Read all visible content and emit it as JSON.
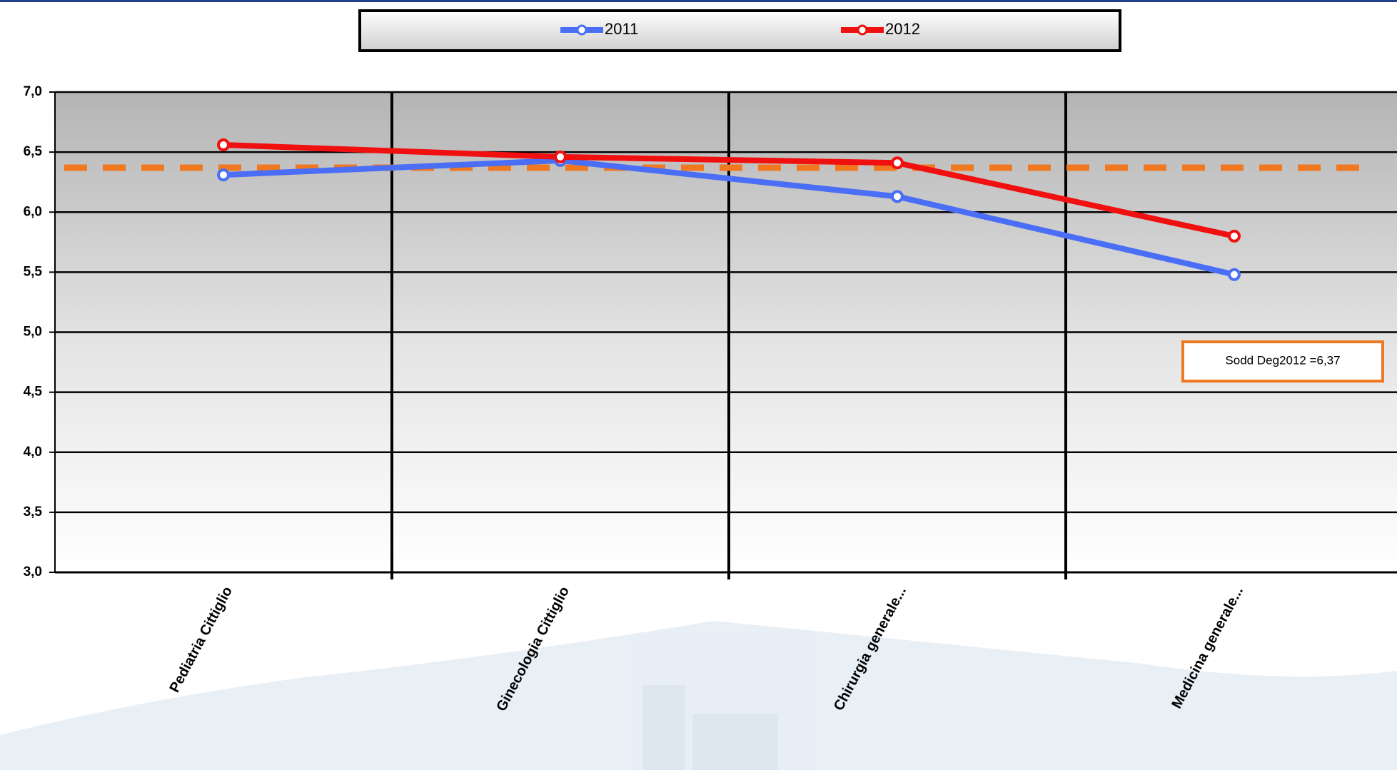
{
  "chart_data": {
    "type": "line",
    "categories": [
      "Pediatria Cittiglio",
      "Ginecologia Cittiglio",
      "Chirurgia generale...",
      "Medicina generale..."
    ],
    "series": [
      {
        "name": "2011",
        "color": "#4a6ef5",
        "values": [
          6.31,
          6.43,
          6.13,
          5.48
        ]
      },
      {
        "name": "2012",
        "color": "#f01010",
        "values": [
          6.56,
          6.46,
          6.41,
          5.8
        ]
      }
    ],
    "reference_line": {
      "value": 6.37,
      "label": "Sodd Deg2012 =6,37",
      "color": "#f07820"
    },
    "ylim": [
      3,
      7
    ],
    "yticks": [
      {
        "value": 3,
        "label": "3,0"
      },
      {
        "value": 3.5,
        "label": "3,5"
      },
      {
        "value": 4,
        "label": "4,0"
      },
      {
        "value": 4.5,
        "label": "4,5"
      },
      {
        "value": 5,
        "label": "5,0"
      },
      {
        "value": 5.5,
        "label": "5,5"
      },
      {
        "value": 6,
        "label": "6,0"
      },
      {
        "value": 6.5,
        "label": "6,5"
      },
      {
        "value": 7,
        "label": "7,0"
      }
    ],
    "grid": true
  }
}
